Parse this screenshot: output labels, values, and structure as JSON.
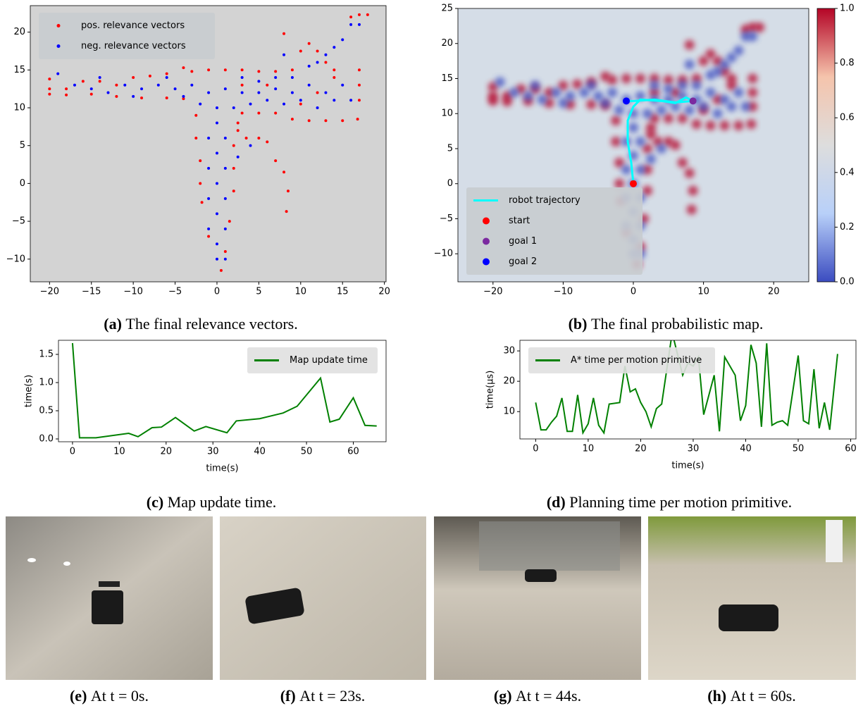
{
  "chart_data": [
    {
      "type": "scatter",
      "caption_label": "(a)",
      "caption": "The final relevance vectors.",
      "xlim": [
        -22.3,
        20.2
      ],
      "ylim": [
        -13,
        23.5
      ],
      "xticks": [
        {
          "value": -20,
          "label": "−20"
        },
        {
          "value": -15,
          "label": "−15"
        },
        {
          "value": -10,
          "label": "−10"
        },
        {
          "value": -5,
          "label": "−5"
        },
        0,
        5,
        10,
        15,
        20
      ],
      "yticks": [
        {
          "value": -10,
          "label": "−10"
        },
        {
          "value": -5,
          "label": "−5"
        },
        0,
        5,
        10,
        15,
        20
      ],
      "background": "#d3d3d3",
      "legend": "upper left",
      "series": [
        {
          "name": "pos. relevance vectors",
          "color": "#ff0000",
          "x": [
            -20,
            -20,
            -20,
            -14,
            -12,
            -10,
            -8,
            -6,
            -4,
            -3,
            -1,
            1,
            3,
            5,
            7,
            9,
            10,
            11,
            12,
            13,
            14,
            8,
            16,
            17,
            18,
            17,
            17,
            17,
            16.8,
            15,
            13,
            11,
            9,
            7,
            5,
            3,
            2.5,
            -18,
            -15,
            -12,
            -9,
            -6,
            -4,
            -2.5,
            -2.5,
            -2,
            -2,
            -1.8,
            2,
            2,
            2,
            2.5,
            3.5,
            5,
            6,
            7,
            8,
            8.5,
            8.3,
            0.5,
            1,
            -1,
            1.5,
            10,
            12,
            14,
            3,
            6,
            -16,
            -18
          ],
          "y": [
            13.8,
            12.5,
            11.8,
            13.5,
            13,
            14,
            14.2,
            14.5,
            15.3,
            14.8,
            15,
            15,
            15,
            14.8,
            14.8,
            15,
            17.5,
            18.5,
            17.5,
            16,
            15,
            19.8,
            22,
            22.3,
            22.3,
            15,
            13,
            11,
            8.5,
            8.3,
            8.3,
            8.3,
            8.5,
            9.3,
            9.3,
            9.3,
            8,
            11.7,
            11.8,
            11.5,
            11.3,
            11.3,
            11.2,
            9,
            6,
            3,
            0,
            -2.5,
            -1,
            2,
            5,
            7,
            6,
            6,
            5.5,
            3,
            1.5,
            -1,
            -3.7,
            -11.5,
            -9,
            -7,
            -5,
            10.5,
            12,
            14,
            13,
            13,
            13.5,
            12.5
          ]
        },
        {
          "name": "neg. relevance vectors",
          "color": "#0000ff",
          "x": [
            -19,
            -17,
            -15,
            -13,
            -11,
            -9,
            -7,
            -5,
            -3,
            -1,
            1,
            3,
            5,
            7,
            9,
            11,
            13,
            15,
            14,
            12,
            10,
            8,
            6,
            4,
            2,
            0,
            -2,
            0,
            -1,
            1,
            0,
            -1,
            1,
            0,
            -1,
            1,
            0,
            -1,
            1,
            0,
            0,
            1,
            15,
            14,
            13,
            12,
            11,
            16,
            17,
            -10,
            -14,
            -6,
            9,
            7,
            5,
            3,
            -4,
            16,
            2.5,
            4,
            8
          ],
          "y": [
            14.5,
            13,
            12.5,
            12,
            13,
            12.5,
            13,
            12.5,
            13,
            12,
            12.5,
            12,
            12,
            12.5,
            12,
            13,
            12,
            13,
            11,
            10,
            11,
            10.5,
            11,
            10.5,
            10,
            10,
            10.5,
            8,
            6,
            6,
            4,
            2,
            2,
            0,
            -2,
            -2,
            -4,
            -6,
            -6,
            -8,
            -10,
            -10,
            19,
            18,
            17,
            16,
            15.5,
            21,
            21,
            11.5,
            14,
            14,
            14,
            14,
            13.5,
            14,
            11.5,
            11,
            3.5,
            5,
            17
          ]
        }
      ]
    },
    {
      "type": "contour",
      "caption_label": "(b)",
      "caption": "The final probabilistic map.",
      "xlim": [
        -25,
        25
      ],
      "ylim": [
        -14,
        25
      ],
      "xticks": [
        {
          "value": -20,
          "label": "−20"
        },
        {
          "value": -10,
          "label": "−10"
        },
        0,
        10,
        20
      ],
      "yticks": [
        {
          "value": -10,
          "label": "−10"
        },
        {
          "value": -5,
          "label": "−5"
        },
        0,
        5,
        10,
        15,
        20,
        25
      ],
      "background": "#d5dde7",
      "legend": "lower left",
      "colorbar": {
        "lim": [
          0,
          1
        ],
        "colors": [
          "#3b4cc0",
          "#b8d0f9",
          "#dddddd",
          "#f5c4ac",
          "#b40426"
        ],
        "ticks": [
          {
            "value": 0,
            "label": "0.0"
          },
          0.2,
          0.4,
          0.6,
          0.8,
          {
            "value": 1,
            "label": "1.0"
          }
        ]
      },
      "series": [
        {
          "name": "robot trajectory",
          "color": "#00ffff",
          "kind": "line",
          "x": [
            0,
            -0.3,
            -0.8,
            -0.8,
            0,
            1,
            4,
            6,
            7.5,
            8.5,
            6,
            3,
            0,
            -1
          ],
          "y": [
            0,
            3,
            6,
            9,
            11,
            12,
            11.8,
            11.5,
            12.3,
            11.8,
            11.6,
            12,
            11.8,
            11.8
          ]
        },
        {
          "name": "start",
          "color": "#ff0000",
          "kind": "point",
          "x": [
            0
          ],
          "y": [
            0
          ]
        },
        {
          "name": "goal 1",
          "color": "#7b2aa0",
          "kind": "point",
          "x": [
            8.5
          ],
          "y": [
            11.8
          ]
        },
        {
          "name": "goal 2",
          "color": "#0000ff",
          "kind": "point",
          "x": [
            -1
          ],
          "y": [
            11.8
          ]
        }
      ]
    },
    {
      "type": "line",
      "caption_label": "(c)",
      "caption": "Map update time.",
      "xlabel": "time(s)",
      "ylabel": "time(s)",
      "legend": "upper right",
      "xlim": [
        -3,
        67
      ],
      "ylim": [
        -0.05,
        1.75
      ],
      "xticks": [
        0,
        10,
        20,
        30,
        40,
        50,
        60
      ],
      "yticks": [
        {
          "value": 0,
          "label": "0.0"
        },
        0.5,
        {
          "value": 1,
          "label": "1.0"
        },
        1.5
      ],
      "series": [
        {
          "name": "Map update time",
          "color": "#008000",
          "x": [
            0,
            1.5,
            5,
            12,
            14,
            17,
            19,
            22,
            26,
            28.5,
            33,
            35,
            40,
            45,
            48,
            53,
            55,
            57,
            60,
            62.5,
            65
          ],
          "y": [
            1.7,
            0.02,
            0.02,
            0.1,
            0.04,
            0.2,
            0.21,
            0.38,
            0.14,
            0.22,
            0.11,
            0.32,
            0.36,
            0.46,
            0.58,
            1.08,
            0.3,
            0.35,
            0.73,
            0.24,
            0.23
          ]
        }
      ]
    },
    {
      "type": "line",
      "caption_label": "(d)",
      "caption": "Planning time per motion primitive.",
      "xlabel": "time(s)",
      "ylabel": "time(μs)",
      "legend": "upper left",
      "xlim": [
        -3,
        61
      ],
      "ylim": [
        1,
        33.5
      ],
      "xticks": [
        0,
        10,
        20,
        30,
        40,
        50,
        60
      ],
      "yticks": [
        10,
        20,
        30
      ],
      "series": [
        {
          "name": "A* time per motion primitive",
          "color": "#008000",
          "x": [
            0,
            1,
            2,
            3,
            4,
            5,
            6,
            7,
            8,
            9,
            10,
            11,
            12,
            13,
            14,
            16,
            17,
            18,
            19,
            20,
            21,
            22,
            23,
            24,
            26,
            28,
            29,
            30,
            31,
            32,
            34,
            35,
            36,
            38,
            39,
            40,
            41,
            42,
            43,
            44,
            45,
            46,
            47,
            48,
            50,
            51,
            52,
            53,
            54,
            55,
            56,
            57.5
          ],
          "y": [
            13,
            4,
            4,
            6.5,
            8.5,
            14.5,
            3.5,
            3.5,
            15.5,
            3,
            6,
            14.5,
            5.5,
            3,
            12.5,
            13,
            25,
            16.5,
            17.5,
            13,
            10,
            5,
            11,
            12.5,
            36,
            22,
            26,
            25,
            28,
            9,
            22,
            3.5,
            28,
            22,
            7,
            12,
            32,
            26,
            5,
            32.5,
            5.5,
            6.5,
            7,
            5.5,
            28.5,
            7,
            6,
            24,
            4.5,
            13,
            4,
            29
          ]
        }
      ]
    }
  ],
  "photos": [
    {
      "label": "(e)",
      "caption": "At t = 0s."
    },
    {
      "label": "(f)",
      "caption": "At t = 23s."
    },
    {
      "label": "(g)",
      "caption": "At t = 44s."
    },
    {
      "label": "(h)",
      "caption": "At t = 60s."
    }
  ]
}
